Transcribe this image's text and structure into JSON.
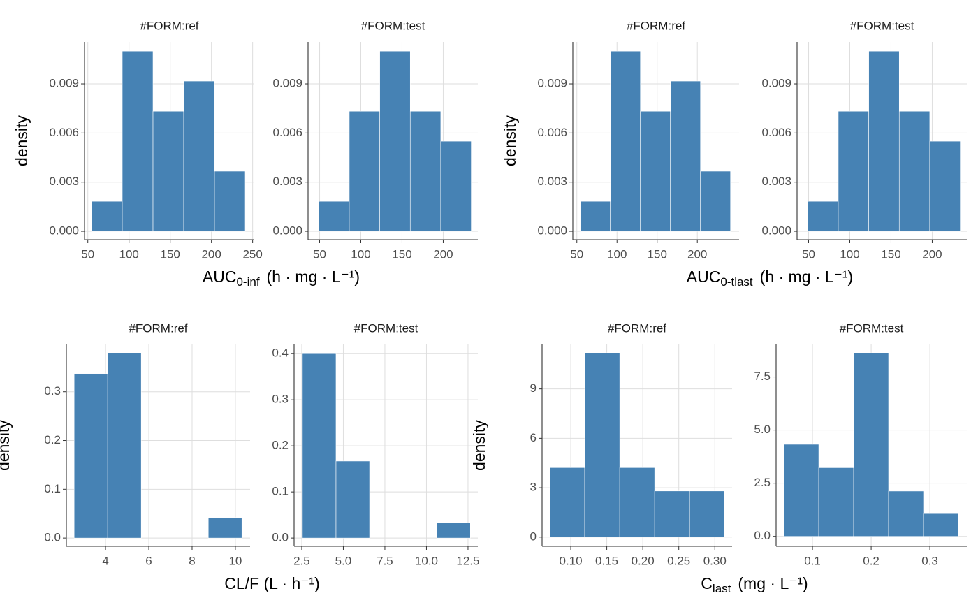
{
  "chart_data": [
    {
      "type": "histogram",
      "title": "#FORM:ref",
      "ylabel": "density",
      "xlabel": {
        "text": "AUC",
        "subscript": "0-inf",
        "unit": "(h · mg · L⁻¹)"
      },
      "bins": [
        54.5,
        91.8,
        129.1,
        166.4,
        203.7,
        241
      ],
      "values": [
        0.00183,
        0.011,
        0.00733,
        0.00917,
        0.00367
      ],
      "color": "#4682b4",
      "grid": true,
      "xlim": [
        46,
        252
      ],
      "ylim": [
        -0.00051,
        0.01156
      ],
      "xticks": [
        50,
        100,
        150,
        200,
        250
      ],
      "yticks": [
        {
          "value": 0,
          "label": "0.000"
        },
        0.003,
        0.006,
        0.009
      ]
    },
    {
      "type": "histogram",
      "title": "#FORM:test",
      "bins": [
        49,
        86,
        123,
        160,
        197,
        234
      ],
      "values": [
        0.00183,
        0.00733,
        0.011,
        0.00733,
        0.0055
      ],
      "color": "#4682b4",
      "grid": true,
      "xlim": [
        36,
        242
      ],
      "ylim": [
        -0.00051,
        0.01156
      ],
      "xticks": [
        50,
        100,
        150,
        200
      ],
      "yticks": [
        {
          "value": 0,
          "label": "0.000"
        },
        0.003,
        0.006,
        0.009
      ]
    },
    {
      "type": "histogram",
      "title": "#FORM:ref",
      "ylabel": "density",
      "xlabel": {
        "text": "AUC",
        "subscript": "0-tlast",
        "unit": "(h · mg · L⁻¹)"
      },
      "bins": [
        54.3,
        91.7,
        129.1,
        166.5,
        203.9,
        241.3
      ],
      "values": [
        0.00183,
        0.011,
        0.00733,
        0.00917,
        0.00367
      ],
      "color": "#4682b4",
      "grid": true,
      "xlim": [
        45,
        252
      ],
      "ylim": [
        -0.00051,
        0.01156
      ],
      "xticks": [
        50,
        100,
        150,
        200
      ],
      "yticks": [
        {
          "value": 0,
          "label": "0.000"
        },
        0.003,
        0.006,
        0.009
      ]
    },
    {
      "type": "histogram",
      "title": "#FORM:test",
      "bins": [
        49,
        86,
        123,
        160,
        197,
        234
      ],
      "values": [
        0.00183,
        0.00733,
        0.011,
        0.00733,
        0.0055
      ],
      "color": "#4682b4",
      "grid": true,
      "xlim": [
        36,
        242
      ],
      "ylim": [
        -0.00051,
        0.01156
      ],
      "xticks": [
        50,
        100,
        150,
        200
      ],
      "yticks": [
        {
          "value": 0,
          "label": "0.000"
        },
        0.003,
        0.006,
        0.009
      ]
    },
    {
      "type": "histogram",
      "title": "#FORM:ref",
      "ylabel": "density",
      "xlabel": {
        "text": "CL/F (L · h⁻¹)"
      },
      "bins": [
        2.55,
        4.1,
        5.65,
        7.2,
        8.75,
        10.3
      ],
      "values": [
        0.337,
        0.379,
        0,
        0,
        0.042
      ],
      "color": "#4682b4",
      "grid": true,
      "xlim": [
        2.19,
        10.68
      ],
      "ylim": [
        -0.017,
        0.397
      ],
      "xticks": [
        4,
        6,
        8,
        10
      ],
      "yticks": [
        {
          "value": 0,
          "label": "0.0"
        },
        0.1,
        0.2,
        0.3
      ]
    },
    {
      "type": "histogram",
      "title": "#FORM:test",
      "bins": [
        2.54,
        4.56,
        6.58,
        8.6,
        10.62,
        12.64
      ],
      "values": [
        0.4,
        0.167,
        0,
        0,
        0.033
      ],
      "color": "#4682b4",
      "grid": true,
      "xlim": [
        2.04,
        13.09
      ],
      "ylim": [
        -0.018,
        0.42
      ],
      "xticks": [
        2.5,
        {
          "value": 5,
          "label": "5.0"
        },
        7.5,
        {
          "value": 10,
          "label": "10.0"
        },
        12.5
      ],
      "yticks": [
        {
          "value": 0,
          "label": "0.0"
        },
        0.1,
        0.2,
        0.3,
        0.4
      ]
    },
    {
      "type": "histogram",
      "title": "#FORM:ref",
      "ylabel": "density",
      "xlabel": {
        "text": "C",
        "subscript": "last",
        "unit": "(mg · L⁻¹)"
      },
      "bins": [
        0.0709,
        0.1194,
        0.168,
        0.2165,
        0.265,
        0.3136
      ],
      "values": [
        4.22,
        11.19,
        4.22,
        2.8,
        2.8
      ],
      "color": "#4682b4",
      "grid": true,
      "xlim": [
        0.0602,
        0.324
      ],
      "ylim": [
        -0.56,
        11.7
      ],
      "xticks": [
        {
          "value": 0.1,
          "label": "0.10"
        },
        0.15,
        {
          "value": 0.2,
          "label": "0.20"
        },
        0.25,
        {
          "value": 0.3,
          "label": "0.30"
        }
      ],
      "yticks": [
        0,
        3,
        6,
        9
      ]
    },
    {
      "type": "histogram",
      "title": "#FORM:test",
      "bins": [
        0.0512,
        0.1107,
        0.1702,
        0.2297,
        0.2892,
        0.3487
      ],
      "values": [
        4.33,
        3.23,
        8.63,
        2.13,
        1.07
      ],
      "color": "#4682b4",
      "grid": true,
      "xlim": [
        0.038,
        0.363
      ],
      "ylim": [
        -0.47,
        9.03
      ],
      "xticks": [
        0.1,
        0.2,
        0.3
      ],
      "yticks": [
        {
          "value": 0,
          "label": "0.0"
        },
        2.5,
        {
          "value": 5,
          "label": "5.0"
        },
        7.5
      ]
    }
  ]
}
